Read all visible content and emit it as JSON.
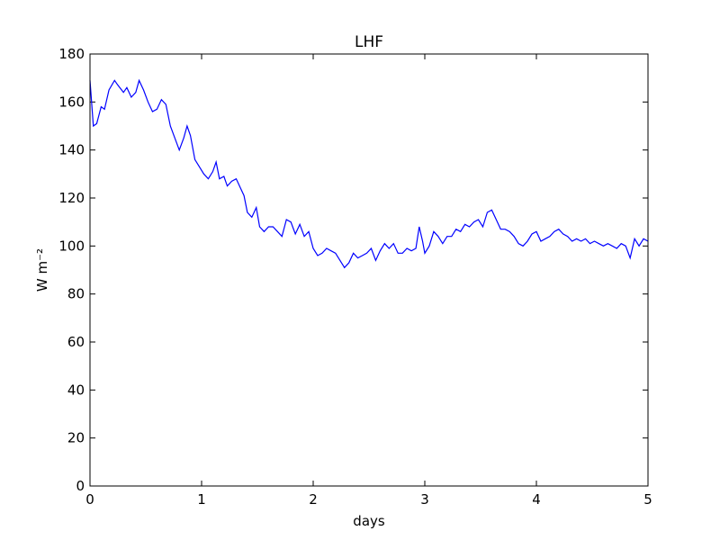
{
  "chart_data": {
    "type": "line",
    "title": "LHF",
    "xlabel": "days",
    "ylabel": "W m⁻²",
    "x": [
      0,
      0.03,
      0.06,
      0.1,
      0.13,
      0.17,
      0.22,
      0.25,
      0.3,
      0.33,
      0.37,
      0.41,
      0.44,
      0.48,
      0.52,
      0.56,
      0.6,
      0.64,
      0.68,
      0.72,
      0.76,
      0.8,
      0.84,
      0.87,
      0.9,
      0.94,
      0.98,
      1.02,
      1.06,
      1.1,
      1.13,
      1.16,
      1.2,
      1.23,
      1.27,
      1.31,
      1.35,
      1.38,
      1.41,
      1.45,
      1.49,
      1.52,
      1.56,
      1.6,
      1.64,
      1.68,
      1.72,
      1.76,
      1.8,
      1.84,
      1.88,
      1.92,
      1.96,
      2.0,
      2.04,
      2.08,
      2.12,
      2.16,
      2.2,
      2.24,
      2.28,
      2.32,
      2.36,
      2.4,
      2.44,
      2.48,
      2.52,
      2.56,
      2.6,
      2.64,
      2.68,
      2.72,
      2.76,
      2.8,
      2.84,
      2.88,
      2.92,
      2.95,
      2.98,
      3.0,
      3.04,
      3.08,
      3.12,
      3.16,
      3.2,
      3.24,
      3.28,
      3.32,
      3.36,
      3.4,
      3.44,
      3.48,
      3.52,
      3.56,
      3.6,
      3.64,
      3.68,
      3.72,
      3.76,
      3.8,
      3.84,
      3.88,
      3.92,
      3.96,
      4.0,
      4.04,
      4.08,
      4.12,
      4.16,
      4.2,
      4.24,
      4.28,
      4.32,
      4.36,
      4.4,
      4.44,
      4.48,
      4.52,
      4.56,
      4.6,
      4.64,
      4.68,
      4.72,
      4.76,
      4.8,
      4.84,
      4.88,
      4.92,
      4.96,
      5.0
    ],
    "series": [
      {
        "name": "LHF",
        "color": "#0000ff",
        "values": [
          169,
          150,
          151,
          158,
          157,
          165,
          169,
          167,
          164,
          166,
          162,
          164,
          169,
          165,
          160,
          156,
          157,
          161,
          159,
          150,
          145,
          140,
          145,
          150,
          146,
          136,
          133,
          130,
          128,
          131,
          135,
          128,
          129,
          125,
          127,
          128,
          124,
          121,
          114,
          112,
          116,
          108,
          106,
          108,
          108,
          106,
          104,
          111,
          110,
          105,
          109,
          104,
          106,
          99,
          96,
          97,
          99,
          98,
          97,
          94,
          91,
          93,
          97,
          95,
          96,
          97,
          99,
          94,
          98,
          101,
          99,
          101,
          97,
          97,
          99,
          98,
          99,
          108,
          102,
          97,
          100,
          106,
          104,
          101,
          104,
          104,
          107,
          106,
          109,
          108,
          110,
          111,
          108,
          114,
          115,
          111,
          107,
          107,
          106,
          104,
          101,
          100,
          102,
          105,
          106,
          102,
          103,
          104,
          106,
          107,
          105,
          104,
          102,
          103,
          102,
          103,
          101,
          102,
          101,
          100,
          101,
          100,
          99,
          101,
          100,
          95,
          103,
          100,
          103,
          102
        ]
      }
    ],
    "xlim": [
      0,
      5
    ],
    "xticks": [
      0,
      1,
      2,
      3,
      4,
      5
    ],
    "ylim": [
      0,
      180
    ],
    "yticks": [
      0,
      20,
      40,
      60,
      80,
      100,
      120,
      140,
      160,
      180
    ],
    "grid": false
  }
}
